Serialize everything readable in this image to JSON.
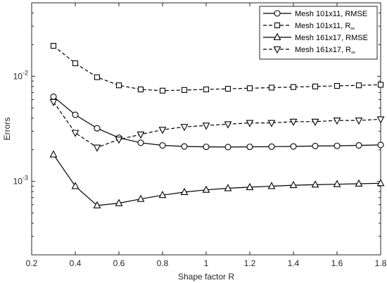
{
  "chart_data": {
    "type": "line",
    "xlabel": "Shape factor R",
    "ylabel": "Errors",
    "xlim": [
      0.2,
      1.8
    ],
    "ylim": [
      0.0002,
      0.05
    ],
    "yscale": "log",
    "xticks": [
      0.2,
      0.4,
      0.6,
      0.8,
      1,
      1.2,
      1.4,
      1.6,
      1.8
    ],
    "xtick_labels": [
      "0.2",
      "0.4",
      "0.6",
      "0.8",
      "1",
      "1.2",
      "1.4",
      "1.6",
      "1.8"
    ],
    "yticks": [
      0.001,
      0.01
    ],
    "ytick_label_base": "10",
    "ytick_label_exponents": [
      "-3",
      "-2"
    ],
    "grid": false,
    "legend_position": "top-right",
    "x": [
      0.3,
      0.4,
      0.5,
      0.6,
      0.7,
      0.8,
      0.9,
      1.0,
      1.1,
      1.2,
      1.3,
      1.4,
      1.5,
      1.6,
      1.7,
      1.8
    ],
    "series": [
      {
        "name": "Mesh 101x11, RMSE",
        "name_main": "Mesh 101x11, RMSE",
        "name_sub": "",
        "line": "solid",
        "marker": "circle",
        "values": [
          0.0064,
          0.0043,
          0.0032,
          0.0026,
          0.00233,
          0.0022,
          0.00215,
          0.00213,
          0.00212,
          0.00213,
          0.00214,
          0.00215,
          0.00217,
          0.00218,
          0.0022,
          0.00222
        ]
      },
      {
        "name": "Mesh 101x11, R∞",
        "name_main": "Mesh 101x11, R",
        "name_sub": "∞",
        "line": "dashed",
        "marker": "square",
        "values": [
          0.0195,
          0.0133,
          0.0098,
          0.0082,
          0.0075,
          0.0073,
          0.0074,
          0.0075,
          0.0076,
          0.0077,
          0.0078,
          0.0079,
          0.008,
          0.0081,
          0.0082,
          0.0083
        ]
      },
      {
        "name": "Mesh 161x17, RMSE",
        "name_main": "Mesh 161x17, RMSE",
        "name_sub": "",
        "line": "solid",
        "marker": "triangle-up",
        "values": [
          0.0018,
          0.0009,
          0.00059,
          0.00062,
          0.00068,
          0.00074,
          0.00079,
          0.00083,
          0.00086,
          0.00088,
          0.0009,
          0.00092,
          0.00093,
          0.00094,
          0.00095,
          0.00096
        ]
      },
      {
        "name": "Mesh 161x17, R∞",
        "name_main": "Mesh 161x17, R",
        "name_sub": "∞",
        "line": "dashed",
        "marker": "triangle-down",
        "values": [
          0.0057,
          0.0029,
          0.0021,
          0.0025,
          0.0028,
          0.0031,
          0.0033,
          0.0034,
          0.0035,
          0.0036,
          0.0036,
          0.0037,
          0.0037,
          0.0038,
          0.0038,
          0.0039
        ]
      }
    ]
  }
}
